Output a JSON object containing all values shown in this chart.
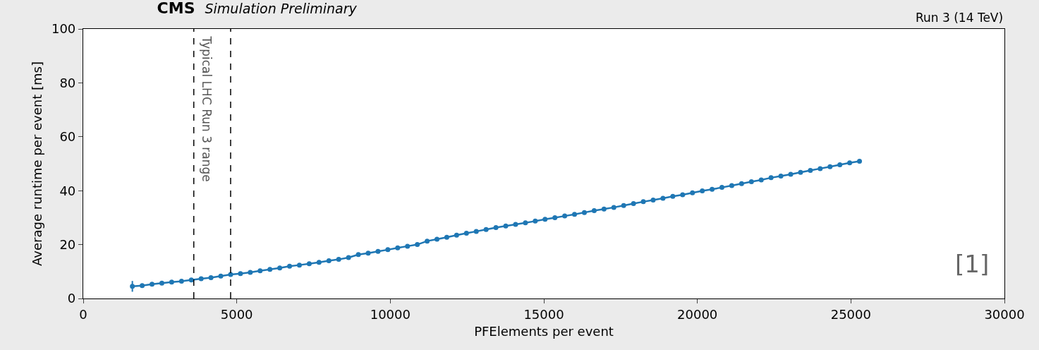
{
  "chart_data": {
    "type": "line",
    "title": "CMS",
    "subtitle": "Simulation Preliminary",
    "xlabel": "PFElements per event",
    "ylabel": "Average runtime per event [ms]",
    "annotations": [
      "Run 3 (14 TeV)",
      "[1]"
    ],
    "x": [
      1600,
      1920,
      2240,
      2560,
      2880,
      3200,
      3520,
      3840,
      4160,
      4480,
      4800,
      5120,
      5440,
      5760,
      6080,
      6400,
      6720,
      7040,
      7360,
      7680,
      8000,
      8320,
      8640,
      8960,
      9280,
      9600,
      9920,
      10240,
      10560,
      10880,
      11200,
      11520,
      11840,
      12160,
      12480,
      12800,
      13120,
      13440,
      13760,
      14080,
      14400,
      14720,
      15040,
      15360,
      15680,
      16000,
      16320,
      16640,
      16960,
      17280,
      17600,
      17920,
      18240,
      18560,
      18880,
      19200,
      19520,
      19840,
      20160,
      20480,
      20800,
      21120,
      21440,
      21760,
      22080,
      22400,
      22720,
      23040,
      23360,
      23680,
      24000,
      24320,
      24640,
      24960,
      25280
    ],
    "series": [
      {
        "color": "#1f77b4",
        "values": [
          4.5,
          4.8,
          5.3,
          5.7,
          6.1,
          6.4,
          6.9,
          7.3,
          7.7,
          8.3,
          8.9,
          9.2,
          9.7,
          10.3,
          10.8,
          11.3,
          12.0,
          12.4,
          12.9,
          13.4,
          14.0,
          14.5,
          15.2,
          16.3,
          16.8,
          17.5,
          18.1,
          18.8,
          19.4,
          20.0,
          21.3,
          22.0,
          22.7,
          23.5,
          24.2,
          24.9,
          25.6,
          26.3,
          26.9,
          27.5,
          28.1,
          28.7,
          29.4,
          30.0,
          30.6,
          31.2,
          31.9,
          32.6,
          33.2,
          33.8,
          34.5,
          35.2,
          35.9,
          36.5,
          37.2,
          37.9,
          38.5,
          39.2,
          39.9,
          40.5,
          41.2,
          41.9,
          42.6,
          43.3,
          44.0,
          44.8,
          45.4,
          46.1,
          46.8,
          47.5,
          48.2,
          48.9,
          49.6,
          50.3,
          50.9
        ],
        "errors": [
          2,
          null,
          null,
          null,
          null,
          null,
          null,
          null,
          null,
          null,
          null,
          null,
          null,
          null,
          null,
          null,
          null,
          null,
          null,
          null,
          null,
          null,
          null,
          null,
          null,
          null,
          null,
          null,
          null,
          null,
          null,
          null,
          null,
          null,
          null,
          null,
          null,
          null,
          null,
          null,
          null,
          null,
          null,
          null,
          null,
          null,
          null,
          null,
          null,
          null,
          null,
          null,
          null,
          null,
          null,
          null,
          null,
          null,
          null,
          null,
          null,
          null,
          null,
          null,
          null,
          null,
          null,
          null,
          null,
          null,
          null,
          null,
          null,
          null,
          null
        ]
      }
    ],
    "ref_lines": [
      {
        "axis": "x",
        "value": 3600,
        "label": "Typical LHC Run 3 range",
        "color": "#000000",
        "line_style": "dashed"
      },
      {
        "axis": "x",
        "value": 4800,
        "color": "#000000",
        "line_style": "dashed"
      }
    ],
    "xlim": [
      0,
      30000
    ],
    "xticks": [
      0,
      5000,
      10000,
      15000,
      20000,
      25000,
      30000
    ],
    "ylim": [
      0,
      100
    ],
    "yticks": [
      0,
      20,
      40,
      60,
      80,
      100
    ],
    "grid": false,
    "marker": "circle",
    "line_style": "solid"
  }
}
